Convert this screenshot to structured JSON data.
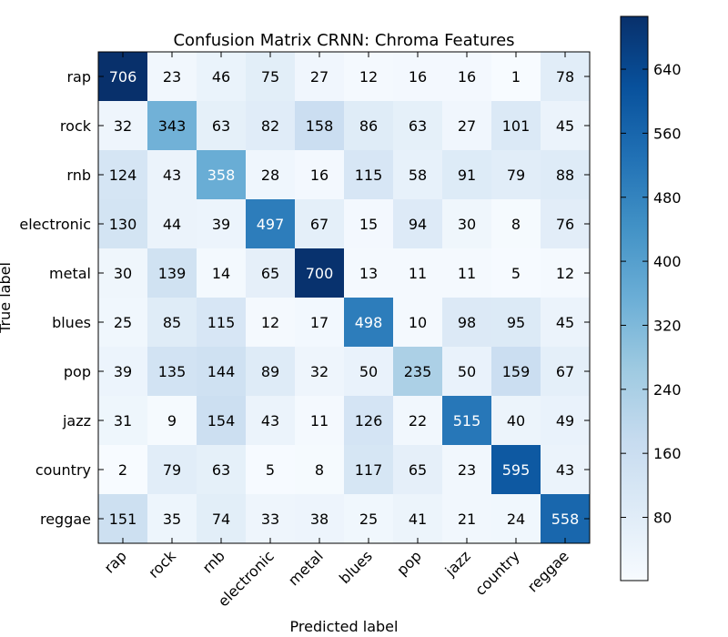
{
  "chart_data": {
    "type": "heatmap",
    "title": "Confusion Matrix CRNN: Chroma Features",
    "xlabel": "Predicted label",
    "ylabel": "True label",
    "labels": [
      "rap",
      "rock",
      "rnb",
      "electronic",
      "metal",
      "blues",
      "pop",
      "jazz",
      "country",
      "reggae"
    ],
    "matrix": [
      [
        706,
        23,
        46,
        75,
        27,
        12,
        16,
        16,
        1,
        78
      ],
      [
        32,
        343,
        63,
        82,
        158,
        86,
        63,
        27,
        101,
        45
      ],
      [
        124,
        43,
        358,
        28,
        16,
        115,
        58,
        91,
        79,
        88
      ],
      [
        130,
        44,
        39,
        497,
        67,
        15,
        94,
        30,
        8,
        76
      ],
      [
        30,
        139,
        14,
        65,
        700,
        13,
        11,
        11,
        5,
        12
      ],
      [
        25,
        85,
        115,
        12,
        17,
        498,
        10,
        98,
        95,
        45
      ],
      [
        39,
        135,
        144,
        89,
        32,
        50,
        235,
        50,
        159,
        67
      ],
      [
        31,
        9,
        154,
        43,
        11,
        126,
        22,
        515,
        40,
        49
      ],
      [
        2,
        79,
        63,
        5,
        8,
        117,
        65,
        23,
        595,
        43
      ],
      [
        151,
        35,
        74,
        33,
        38,
        25,
        41,
        21,
        24,
        558
      ]
    ],
    "colorbar": {
      "ticks": [
        80,
        160,
        240,
        320,
        400,
        480,
        560,
        640
      ],
      "vmin": 1,
      "vmax": 706,
      "colormap": "Blues"
    }
  }
}
